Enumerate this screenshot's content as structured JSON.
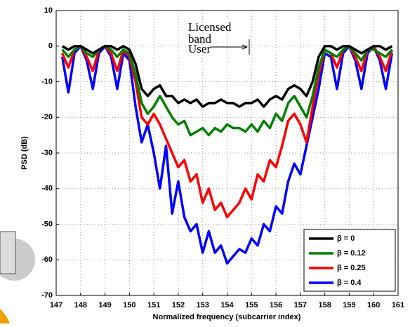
{
  "chart_data": {
    "type": "line",
    "xlabel": "Normalized frequency (subcarrier index)",
    "ylabel": "PSD (dB)",
    "annotations": [
      "Licensed",
      "band",
      "User"
    ],
    "x": [
      147.25,
      147.5,
      147.75,
      148,
      148.25,
      148.5,
      148.75,
      149,
      149.25,
      149.5,
      149.75,
      150,
      150.25,
      150.5,
      150.75,
      151,
      151.25,
      151.5,
      151.75,
      152,
      152.25,
      152.5,
      152.75,
      153,
      153.25,
      153.5,
      153.75,
      154,
      154.25,
      154.5,
      154.75,
      155,
      155.25,
      155.5,
      155.75,
      156,
      156.25,
      156.5,
      156.75,
      157,
      157.25,
      157.5,
      157.75,
      158,
      158.25,
      158.5,
      158.75,
      159,
      159.25,
      159.5,
      159.75,
      160,
      160.25,
      160.5,
      160.75
    ],
    "series": [
      {
        "name": "β = 0",
        "color": "#000000",
        "values": [
          0,
          -1,
          0,
          0,
          -1,
          -2,
          -1,
          0,
          0,
          -1,
          0,
          -1,
          -5,
          -12,
          -14,
          -12,
          -11,
          -14,
          -14,
          -16,
          -15,
          -16,
          -15,
          -17,
          -16,
          -16,
          -15,
          -16,
          -16,
          -17,
          -16,
          -16,
          -15,
          -17,
          -15,
          -14,
          -15,
          -12,
          -11,
          -12,
          -14,
          -10,
          -3,
          0,
          0,
          -1,
          0,
          0,
          -1,
          -2,
          -1,
          0,
          0,
          -1,
          0
        ]
      },
      {
        "name": "β = 0.12",
        "color": "#008000",
        "values": [
          -1,
          -3,
          -1,
          0,
          -2,
          -3,
          -1,
          0,
          -1,
          -3,
          -1,
          -2,
          -8,
          -16,
          -19,
          -17,
          -14,
          -17,
          -20,
          -22,
          -21,
          -25,
          -24,
          -23,
          -25,
          -23,
          -24,
          -22,
          -23,
          -23,
          -24,
          -22,
          -24,
          -21,
          -23,
          -19,
          -21,
          -16,
          -14,
          -17,
          -20,
          -14,
          -6,
          -1,
          -2,
          -3,
          -1,
          0,
          -2,
          -4,
          -1,
          -1,
          -2,
          -3,
          -1
        ]
      },
      {
        "name": "β = 0.25",
        "color": "#ff0000",
        "values": [
          -2,
          -6,
          -1,
          0,
          -3,
          -7,
          -1,
          0,
          -2,
          -7,
          -1,
          -3,
          -10,
          -20,
          -22,
          -19,
          -22,
          -26,
          -30,
          -34,
          -32,
          -38,
          -36,
          -44,
          -40,
          -46,
          -44,
          -48,
          -46,
          -44,
          -40,
          -43,
          -36,
          -38,
          -32,
          -34,
          -28,
          -21,
          -19,
          -22,
          -27,
          -17,
          -8,
          -1,
          -2,
          -6,
          -1,
          0,
          -3,
          -7,
          -1,
          0,
          -3,
          -7,
          -1
        ]
      },
      {
        "name": "β = 0.4",
        "color": "#0000ff",
        "values": [
          -3,
          -13,
          -2,
          0,
          -4,
          -12,
          -2,
          0,
          -3,
          -12,
          -2,
          -4,
          -17,
          -27,
          -22,
          -30,
          -40,
          -28,
          -47,
          -38,
          -48,
          -52,
          -50,
          -58,
          -52,
          -58,
          -56,
          -61,
          -59,
          -57,
          -58,
          -54,
          -56,
          -50,
          -52,
          -45,
          -47,
          -38,
          -33,
          -36,
          -28,
          -20,
          -12,
          -2,
          -3,
          -12,
          -2,
          0,
          -4,
          -12,
          -2,
          0,
          -4,
          -12,
          -2
        ]
      }
    ],
    "xlim": [
      147,
      161
    ],
    "xticks": [
      147,
      148,
      149,
      150,
      151,
      152,
      153,
      154,
      155,
      156,
      157,
      158,
      159,
      160,
      161
    ],
    "ylim": [
      -70,
      10
    ],
    "yticks": [
      -70,
      -60,
      -50,
      -40,
      -30,
      -20,
      -10,
      0,
      10
    ],
    "grid": true,
    "legend": "lower right"
  }
}
